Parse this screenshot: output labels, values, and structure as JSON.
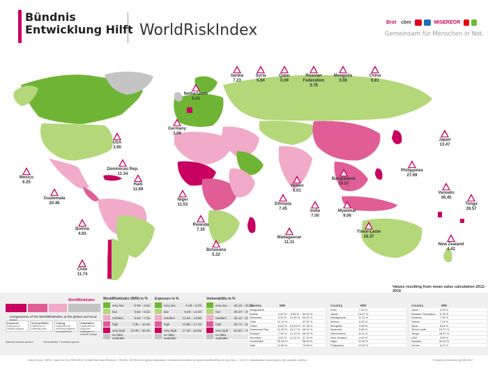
{
  "header": {
    "brand_line1": "Bündnis",
    "brand_line2": "Entwicklung Hilft",
    "title": "WorldRiskIndex",
    "tagline": "Gemeinsam für Menschen in Not.",
    "partner_logos": [
      "Brot",
      "cbm",
      "kindernothilfe",
      "medico",
      "MISEREOR",
      "terre des hommes",
      "WHH"
    ]
  },
  "colors": {
    "very_high": "#c8005f",
    "high": "#e05d96",
    "medium": "#f1aac8",
    "low": "#b4d77a",
    "very_low": "#6fb535",
    "no_data": "#c4c4c4"
  },
  "markers": [
    {
      "country": "Serbia",
      "value": "7.23"
    },
    {
      "country": "Syria",
      "value": "5.64"
    },
    {
      "country": "Qatar",
      "value": "0.09"
    },
    {
      "country": "Russian Federation",
      "value": "3.78"
    },
    {
      "country": "Mongolia",
      "value": "3.08"
    },
    {
      "country": "China",
      "value": "6.81"
    },
    {
      "country": "Netherlands",
      "value": "8.41"
    },
    {
      "country": "Germany",
      "value": "3.09"
    },
    {
      "country": "USA",
      "value": "3.90"
    },
    {
      "country": "Dominican Rep.",
      "value": "11.34"
    },
    {
      "country": "Haiti",
      "value": "11.89"
    },
    {
      "country": "Mexico",
      "value": "6.25"
    },
    {
      "country": "Guatemala",
      "value": "20.46"
    },
    {
      "country": "Bolivia",
      "value": "4.93"
    },
    {
      "country": "Chile",
      "value": "11.74"
    },
    {
      "country": "Niger",
      "value": "11.53"
    },
    {
      "country": "Rwanda",
      "value": "7.35"
    },
    {
      "country": "Botswana",
      "value": "5.32"
    },
    {
      "country": "Yemen",
      "value": "6.01"
    },
    {
      "country": "Ethiopia",
      "value": "7.45"
    },
    {
      "country": "Madagascar",
      "value": "11.11"
    },
    {
      "country": "India",
      "value": "7.00"
    },
    {
      "country": "Bangladesh",
      "value": "19.57"
    },
    {
      "country": "Myanmar",
      "value": "9.06"
    },
    {
      "country": "Philippines",
      "value": "27.69"
    },
    {
      "country": "Japan",
      "value": "13.47"
    },
    {
      "country": "Timor-Leste",
      "value": "16.37"
    },
    {
      "country": "Vanuatu",
      "value": "36.45"
    },
    {
      "country": "Tonga",
      "value": "28.57"
    },
    {
      "country": "New Zealand",
      "value": "4.42"
    }
  ],
  "footnote": "Values resulting from mean value calculation 2012–2016",
  "legend": {
    "wri_label": "WorldRiskIndex",
    "components_label": "Components of the WorldRiskIndex at the global and local level",
    "components": [
      {
        "name": "Exposure",
        "text": "Exposure to natural hazards"
      },
      {
        "name": "Susceptibility",
        "text": "Likelihood of suffering harm"
      },
      {
        "name": "Coping",
        "text": "Capacities for reducing negative consequences"
      },
      {
        "name": "Adaptation",
        "text": "Capacities for long-term strategies for societal change"
      }
    ],
    "sphere_natural": "Natural hazard sphere",
    "sphere_vulnerability": "Vulnerability / Societal sphere",
    "categories": [
      "very low",
      "low",
      "medium",
      "high",
      "very high",
      "no data available"
    ],
    "wri_head": "WorldRiskIndex (WRI) in %",
    "wri_ranges": [
      "0.09 – 3.52",
      "3.53 – 5.62",
      "5.63 – 7.35",
      "7.36 – 10.48",
      "10.49 – 36.45",
      ""
    ],
    "exposure_head": "Exposure in %",
    "exposure_ranges": [
      "0.28 – 9.25",
      "9.26 – 11.53",
      "11.54 – 13.85",
      "13.86 – 17.46",
      "17.46 – 63.66",
      ""
    ],
    "vuln_head": "Vulnerability in %",
    "vuln_ranges": [
      "26.19 – 35.36",
      "35.37 – 45.11",
      "45.12 – 53.70",
      "53.71 – 62.62",
      "62.63 – 74.36",
      ""
    ]
  },
  "tables": {
    "col_country": "Country",
    "col_wri": "WRI",
    "t1": [
      {
        "c": "Bangladesh",
        "a": "",
        "b": "",
        "d": ""
      },
      {
        "c": "Bolivia",
        "a": "4.93 %",
        "b": "8.98 %",
        "d": "54.92 %"
      },
      {
        "c": "Botswana",
        "a": "5.32 %",
        "b": "10.55 %",
        "d": "50.40 %"
      },
      {
        "c": "Chile",
        "a": "11.74 %",
        "b": "",
        "d": "37.92 %"
      },
      {
        "c": "China",
        "a": "6.81 %",
        "b": "14.43 %",
        "d": "47.18 %"
      },
      {
        "c": "Dominican Rep.",
        "a": "11.34 %",
        "b": "24.17 %",
        "d": "46.91 %"
      },
      {
        "c": "Ethiopia",
        "a": "7.45 %",
        "b": "11.13 %",
        "d": "66.92 %"
      },
      {
        "c": "Germany",
        "a": "3.09 %",
        "b": "11.41 %",
        "d": "27.10 %"
      },
      {
        "c": "Guatemala",
        "a": "20.46 %",
        "b": "",
        "d": "56.30 %"
      },
      {
        "c": "Haiti",
        "a": "11.89 %",
        "b": "",
        "d": "72.89 %"
      }
    ],
    "t2": [
      {
        "c": "India",
        "a": "7.00 %",
        "b": "",
        "d": ""
      },
      {
        "c": "Japan",
        "a": "13.47 %",
        "b": "",
        "d": ""
      },
      {
        "c": "Madagascar",
        "a": "11.11 %",
        "b": "",
        "d": ""
      },
      {
        "c": "Mexico",
        "a": "6.25 %",
        "b": "",
        "d": ""
      },
      {
        "c": "Mongolia",
        "a": "3.08 %",
        "b": "",
        "d": ""
      },
      {
        "c": "Myanmar",
        "a": "9.06 %",
        "b": "",
        "d": ""
      },
      {
        "c": "Netherlands",
        "a": "8.41 %",
        "b": "",
        "d": ""
      },
      {
        "c": "New Zealand",
        "a": "4.42 %",
        "b": "",
        "d": ""
      },
      {
        "c": "Niger",
        "a": "11.53 %",
        "b": "",
        "d": ""
      },
      {
        "c": "Philippines",
        "a": "27.69 %",
        "b": "",
        "d": ""
      }
    ],
    "t3": [
      {
        "c": "Qatar",
        "a": "0.09 %",
        "b": "",
        "d": ""
      },
      {
        "c": "Russian Federation",
        "a": "3.78 %",
        "b": "",
        "d": ""
      },
      {
        "c": "Rwanda",
        "a": "7.35 %",
        "b": "",
        "d": ""
      },
      {
        "c": "Serbia",
        "a": "7.23 %",
        "b": "",
        "d": ""
      },
      {
        "c": "Syria",
        "a": "5.64 %",
        "b": "",
        "d": ""
      },
      {
        "c": "Timor-Leste",
        "a": "16.37 %",
        "b": "",
        "d": ""
      },
      {
        "c": "Tonga",
        "a": "28.57 %",
        "b": "",
        "d": ""
      },
      {
        "c": "USA",
        "a": "3.90 %",
        "b": "",
        "d": ""
      },
      {
        "c": "Vanuatu",
        "a": "36.45 %",
        "b": "",
        "d": ""
      },
      {
        "c": "Yemen",
        "a": "6.01 %",
        "b": "",
        "d": ""
      }
    ]
  },
  "footer": {
    "source": "Data Source: WRI2, based on the PREVIEW Global Risk Data Platform, CReSIS, DESDA and global databases. Detailed information at www.WorldRiskReport.org. Max. = 100 %. Classification according to the quantile method.",
    "copyright": "© Bündnis Entwicklung Hilft 2017"
  }
}
